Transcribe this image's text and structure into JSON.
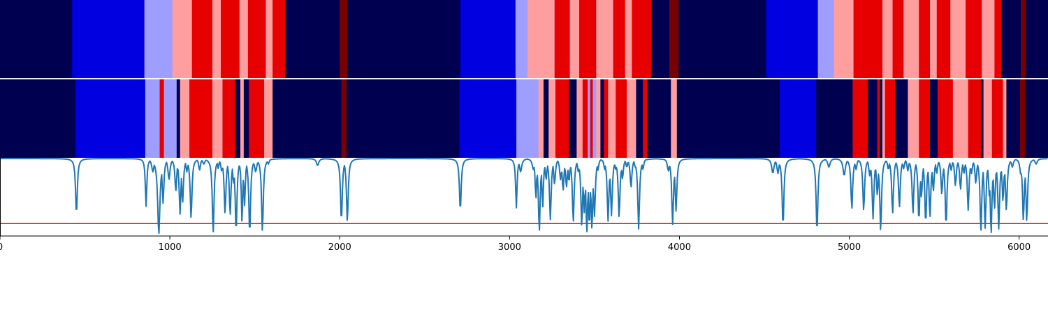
{
  "chart_data": {
    "type": "heatmap",
    "title": "",
    "xlabel": "",
    "ylabel": "",
    "xlim": [
      0,
      6170
    ],
    "grid": false,
    "legend": "none",
    "x_ticks": [
      0,
      1000,
      2000,
      3000,
      4000,
      5000,
      6000
    ],
    "x_tick_labels": [
      "0",
      "1000",
      "2000",
      "3000",
      "4000",
      "5000",
      "6000"
    ],
    "state_colors": {
      "0": "#000050",
      "1": "#0000e0",
      "2": "#9e9eff",
      "3": "#ff9e9e",
      "4": "#e60000",
      "5": "#780000"
    },
    "rows": [
      {
        "name": "",
        "segments": [
          [
            0,
            425,
            0
          ],
          [
            425,
            850,
            1
          ],
          [
            850,
            1015,
            2
          ],
          [
            1015,
            1130,
            3
          ],
          [
            1130,
            1250,
            4
          ],
          [
            1250,
            1300,
            3
          ],
          [
            1300,
            1410,
            4
          ],
          [
            1410,
            1460,
            3
          ],
          [
            1460,
            1565,
            4
          ],
          [
            1565,
            1605,
            3
          ],
          [
            1605,
            1680,
            4
          ],
          [
            1680,
            2000,
            0
          ],
          [
            2000,
            2045,
            5
          ],
          [
            2045,
            2710,
            0
          ],
          [
            2710,
            3035,
            1
          ],
          [
            3035,
            3105,
            2
          ],
          [
            3105,
            3265,
            3
          ],
          [
            3265,
            3355,
            4
          ],
          [
            3355,
            3410,
            3
          ],
          [
            3410,
            3510,
            4
          ],
          [
            3510,
            3610,
            3
          ],
          [
            3610,
            3680,
            4
          ],
          [
            3680,
            3720,
            3
          ],
          [
            3720,
            3835,
            4
          ],
          [
            3835,
            3940,
            0
          ],
          [
            3940,
            3995,
            5
          ],
          [
            3995,
            4510,
            0
          ],
          [
            4510,
            4815,
            1
          ],
          [
            4815,
            4910,
            2
          ],
          [
            4910,
            5025,
            3
          ],
          [
            5025,
            5195,
            4
          ],
          [
            5195,
            5255,
            3
          ],
          [
            5255,
            5320,
            4
          ],
          [
            5320,
            5410,
            3
          ],
          [
            5410,
            5475,
            4
          ],
          [
            5475,
            5515,
            3
          ],
          [
            5515,
            5595,
            4
          ],
          [
            5595,
            5685,
            3
          ],
          [
            5685,
            5780,
            4
          ],
          [
            5780,
            5855,
            3
          ],
          [
            5855,
            5895,
            4
          ],
          [
            5895,
            6010,
            0
          ],
          [
            6010,
            6040,
            5
          ],
          [
            6040,
            6170,
            0
          ]
        ]
      },
      {
        "name": "",
        "segments": [
          [
            0,
            445,
            0
          ],
          [
            445,
            855,
            1
          ],
          [
            855,
            940,
            2
          ],
          [
            940,
            965,
            4
          ],
          [
            965,
            1040,
            2
          ],
          [
            1040,
            1060,
            0
          ],
          [
            1060,
            1115,
            3
          ],
          [
            1115,
            1250,
            4
          ],
          [
            1250,
            1310,
            3
          ],
          [
            1310,
            1385,
            4
          ],
          [
            1385,
            1415,
            0
          ],
          [
            1415,
            1435,
            3
          ],
          [
            1435,
            1465,
            0
          ],
          [
            1465,
            1555,
            4
          ],
          [
            1555,
            1605,
            3
          ],
          [
            1605,
            2010,
            0
          ],
          [
            2010,
            2040,
            5
          ],
          [
            2040,
            2705,
            0
          ],
          [
            2705,
            3040,
            1
          ],
          [
            3040,
            3170,
            2
          ],
          [
            3170,
            3200,
            3
          ],
          [
            3200,
            3230,
            0
          ],
          [
            3230,
            3270,
            3
          ],
          [
            3270,
            3350,
            4
          ],
          [
            3350,
            3395,
            0
          ],
          [
            3395,
            3430,
            3
          ],
          [
            3430,
            3460,
            4
          ],
          [
            3460,
            3475,
            2
          ],
          [
            3475,
            3490,
            4
          ],
          [
            3490,
            3510,
            2
          ],
          [
            3510,
            3535,
            3
          ],
          [
            3535,
            3555,
            0
          ],
          [
            3555,
            3580,
            4
          ],
          [
            3580,
            3625,
            3
          ],
          [
            3625,
            3690,
            4
          ],
          [
            3690,
            3745,
            3
          ],
          [
            3745,
            3785,
            0
          ],
          [
            3785,
            3810,
            4
          ],
          [
            3810,
            3950,
            0
          ],
          [
            3950,
            3985,
            3
          ],
          [
            3985,
            4590,
            0
          ],
          [
            4590,
            4805,
            1
          ],
          [
            4805,
            5020,
            0
          ],
          [
            5020,
            5110,
            4
          ],
          [
            5110,
            5165,
            0
          ],
          [
            5165,
            5180,
            4
          ],
          [
            5180,
            5195,
            0
          ],
          [
            5195,
            5210,
            3
          ],
          [
            5210,
            5270,
            4
          ],
          [
            5270,
            5345,
            0
          ],
          [
            5345,
            5410,
            3
          ],
          [
            5410,
            5475,
            4
          ],
          [
            5475,
            5520,
            0
          ],
          [
            5520,
            5610,
            4
          ],
          [
            5610,
            5700,
            3
          ],
          [
            5700,
            5775,
            4
          ],
          [
            5775,
            5790,
            0
          ],
          [
            5790,
            5840,
            3
          ],
          [
            5840,
            5905,
            4
          ],
          [
            5905,
            5925,
            3
          ],
          [
            5925,
            6005,
            0
          ],
          [
            6005,
            6035,
            5
          ],
          [
            6035,
            6170,
            0
          ]
        ]
      }
    ],
    "line_panel": {
      "ylim": [
        0,
        1
      ],
      "threshold": 0.16,
      "threshold_color": "#e60000",
      "line_color": "#1f77b4",
      "baseline": 0.99,
      "dips": [
        [
          450,
          0.27,
          6
        ],
        [
          860,
          0.38,
          5
        ],
        [
          900,
          0.82,
          8
        ],
        [
          935,
          0.02,
          8
        ],
        [
          960,
          0.42,
          6
        ],
        [
          995,
          0.72,
          7
        ],
        [
          1035,
          0.57,
          6
        ],
        [
          1060,
          0.28,
          6
        ],
        [
          1075,
          0.42,
          6
        ],
        [
          1100,
          0.82,
          6
        ],
        [
          1125,
          0.22,
          6
        ],
        [
          1175,
          0.84,
          6
        ],
        [
          1200,
          0.92,
          8
        ],
        [
          1255,
          0.03,
          6
        ],
        [
          1285,
          0.86,
          5
        ],
        [
          1305,
          0.83,
          6
        ],
        [
          1325,
          0.28,
          6
        ],
        [
          1355,
          0.26,
          6
        ],
        [
          1375,
          0.67,
          6
        ],
        [
          1390,
          0.04,
          6
        ],
        [
          1410,
          0.88,
          5
        ],
        [
          1425,
          0.16,
          5
        ],
        [
          1440,
          0.39,
          5
        ],
        [
          1470,
          0.02,
          6
        ],
        [
          1505,
          0.82,
          8
        ],
        [
          1545,
          0.05,
          6
        ],
        [
          1580,
          0.92,
          6
        ],
        [
          1870,
          0.9,
          8
        ],
        [
          2010,
          0.18,
          6
        ],
        [
          2045,
          0.18,
          6
        ],
        [
          2710,
          0.32,
          6
        ],
        [
          3040,
          0.36,
          5
        ],
        [
          3065,
          0.82,
          8
        ],
        [
          3140,
          0.85,
          8
        ],
        [
          3155,
          0.47,
          5
        ],
        [
          3175,
          0.05,
          6
        ],
        [
          3195,
          0.35,
          5
        ],
        [
          3215,
          0.72,
          6
        ],
        [
          3240,
          0.21,
          6
        ],
        [
          3265,
          0.66,
          6
        ],
        [
          3300,
          0.72,
          6
        ],
        [
          3315,
          0.58,
          6
        ],
        [
          3335,
          0.62,
          6
        ],
        [
          3350,
          0.69,
          6
        ],
        [
          3375,
          0.17,
          6
        ],
        [
          3405,
          0.82,
          6
        ],
        [
          3425,
          0.12,
          6
        ],
        [
          3440,
          0.3,
          6
        ],
        [
          3455,
          0.03,
          6
        ],
        [
          3470,
          0.12,
          6
        ],
        [
          3485,
          0.08,
          6
        ],
        [
          3500,
          0.25,
          6
        ],
        [
          3520,
          0.84,
          6
        ],
        [
          3560,
          0.85,
          6
        ],
        [
          3580,
          0.19,
          6
        ],
        [
          3600,
          0.26,
          6
        ],
        [
          3625,
          0.85,
          6
        ],
        [
          3645,
          0.23,
          6
        ],
        [
          3665,
          0.73,
          6
        ],
        [
          3690,
          0.88,
          6
        ],
        [
          3715,
          0.62,
          6
        ],
        [
          3740,
          0.88,
          6
        ],
        [
          3760,
          0.09,
          6
        ],
        [
          3785,
          0.85,
          6
        ],
        [
          3935,
          0.83,
          7
        ],
        [
          3960,
          0.15,
          6
        ],
        [
          3980,
          0.32,
          6
        ],
        [
          4550,
          0.8,
          8
        ],
        [
          4580,
          0.8,
          7
        ],
        [
          4610,
          0.12,
          6
        ],
        [
          4810,
          0.04,
          6
        ],
        [
          4880,
          0.88,
          8
        ],
        [
          4970,
          0.77,
          8
        ],
        [
          5015,
          0.34,
          6
        ],
        [
          5040,
          0.85,
          6
        ],
        [
          5085,
          0.32,
          6
        ],
        [
          5120,
          0.77,
          6
        ],
        [
          5140,
          0.22,
          6
        ],
        [
          5165,
          0.52,
          6
        ],
        [
          5185,
          0.06,
          6
        ],
        [
          5230,
          0.85,
          6
        ],
        [
          5255,
          0.28,
          6
        ],
        [
          5295,
          0.36,
          6
        ],
        [
          5320,
          0.86,
          6
        ],
        [
          5345,
          0.83,
          6
        ],
        [
          5375,
          0.28,
          6
        ],
        [
          5410,
          0.18,
          6
        ],
        [
          5425,
          0.49,
          6
        ],
        [
          5450,
          0.15,
          6
        ],
        [
          5475,
          0.23,
          6
        ],
        [
          5495,
          0.57,
          6
        ],
        [
          5515,
          0.8,
          6
        ],
        [
          5545,
          0.53,
          6
        ],
        [
          5570,
          0.12,
          6
        ],
        [
          5600,
          0.84,
          6
        ],
        [
          5625,
          0.64,
          6
        ],
        [
          5655,
          0.59,
          6
        ],
        [
          5675,
          0.8,
          6
        ],
        [
          5700,
          0.33,
          6
        ],
        [
          5720,
          0.8,
          6
        ],
        [
          5745,
          0.67,
          6
        ],
        [
          5775,
          0.05,
          6
        ],
        [
          5800,
          0.1,
          6
        ],
        [
          5825,
          0.5,
          6
        ],
        [
          5835,
          0.02,
          6
        ],
        [
          5855,
          0.34,
          6
        ],
        [
          5880,
          0.09,
          6
        ],
        [
          5905,
          0.44,
          6
        ],
        [
          5925,
          0.32,
          6
        ],
        [
          5960,
          0.88,
          7
        ],
        [
          6010,
          0.78,
          7
        ],
        [
          6025,
          0.19,
          6
        ],
        [
          6045,
          0.18,
          6
        ],
        [
          6100,
          0.92,
          8
        ]
      ]
    }
  }
}
